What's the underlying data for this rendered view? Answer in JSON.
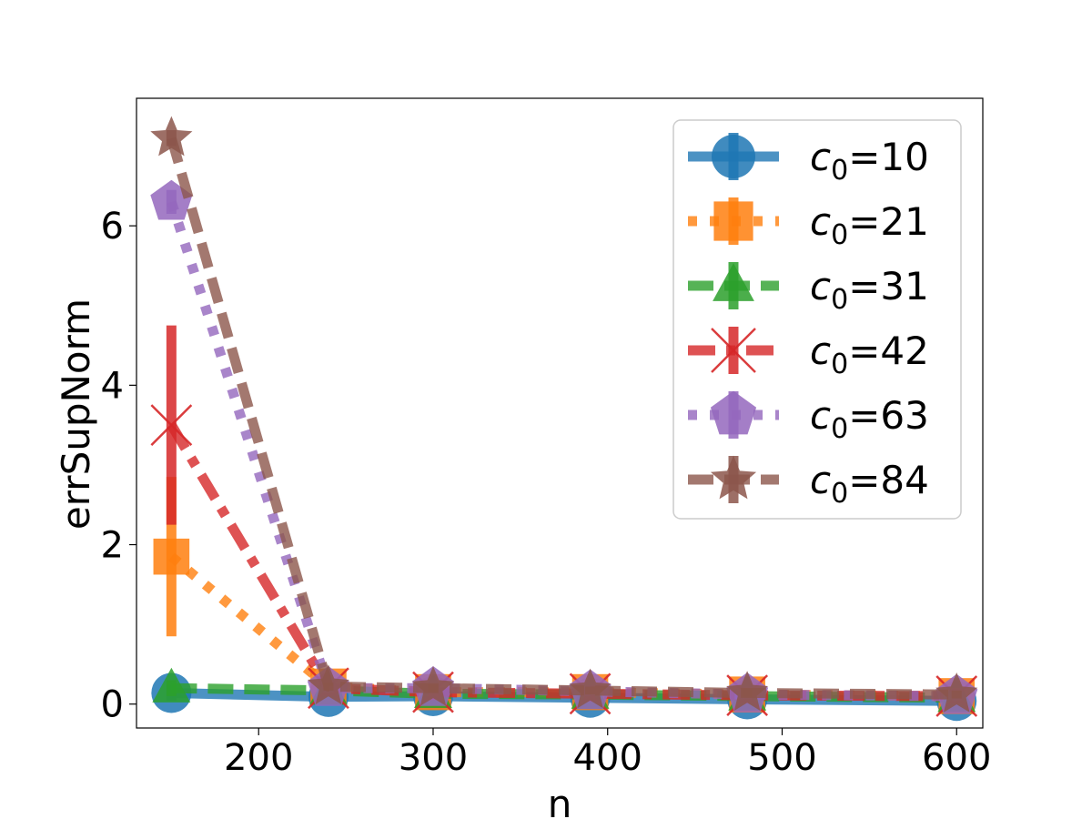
{
  "chart_data": {
    "type": "line",
    "xlabel": "n",
    "ylabel": "errSupNorm",
    "xlim": [
      130,
      615
    ],
    "ylim": [
      -0.3,
      7.6
    ],
    "xticks": [
      200,
      300,
      400,
      500,
      600
    ],
    "yticks": [
      0,
      2,
      4,
      6
    ],
    "x": [
      150,
      240,
      300,
      390,
      480,
      600
    ],
    "legend_position": "upper right",
    "grid": false,
    "series": [
      {
        "name": "c0=10",
        "label_base": "c",
        "label_sub": "0",
        "label_rest": "=10",
        "color": "#1f77b4",
        "linestyle": "solid",
        "marker": "circle",
        "values": [
          0.14,
          0.09,
          0.1,
          0.08,
          0.06,
          0.04
        ],
        "err": [
          0.1,
          0.05,
          0.05,
          0.05,
          0.05,
          0.05
        ]
      },
      {
        "name": "c0=21",
        "label_base": "c",
        "label_sub": "0",
        "label_rest": "=21",
        "color": "#ff7f0e",
        "linestyle": "dotted",
        "marker": "square",
        "values": [
          1.85,
          0.22,
          0.15,
          0.15,
          0.12,
          0.1
        ],
        "err": [
          1.0,
          0.1,
          0.1,
          0.1,
          0.1,
          0.1
        ]
      },
      {
        "name": "c0=31",
        "label_base": "c",
        "label_sub": "0",
        "label_rest": "=31",
        "color": "#2ca02c",
        "linestyle": "dashed",
        "marker": "triangle",
        "values": [
          0.2,
          0.17,
          0.13,
          0.12,
          0.1,
          0.08
        ],
        "err": [
          0.1,
          0.05,
          0.05,
          0.05,
          0.05,
          0.05
        ]
      },
      {
        "name": "c0=42",
        "label_base": "c",
        "label_sub": "0",
        "label_rest": "=42",
        "color": "#d62728",
        "linestyle": "dashdot",
        "marker": "x",
        "values": [
          3.5,
          0.2,
          0.15,
          0.13,
          0.11,
          0.1
        ],
        "err": [
          1.25,
          0.1,
          0.1,
          0.1,
          0.1,
          0.1
        ]
      },
      {
        "name": "c0=63",
        "label_base": "c",
        "label_sub": "0",
        "label_rest": "=63",
        "color": "#9467bd",
        "linestyle": "dotted",
        "marker": "pentagon",
        "values": [
          6.3,
          0.2,
          0.2,
          0.16,
          0.12,
          0.1
        ],
        "err": [
          0.15,
          0.05,
          0.05,
          0.05,
          0.05,
          0.05
        ]
      },
      {
        "name": "c0=84",
        "label_base": "c",
        "label_sub": "0",
        "label_rest": "=84",
        "color": "#8c564b",
        "linestyle": "dashed",
        "marker": "star",
        "values": [
          7.1,
          0.22,
          0.2,
          0.17,
          0.14,
          0.12
        ],
        "err": [
          0.1,
          0.05,
          0.05,
          0.05,
          0.05,
          0.05
        ]
      }
    ]
  }
}
